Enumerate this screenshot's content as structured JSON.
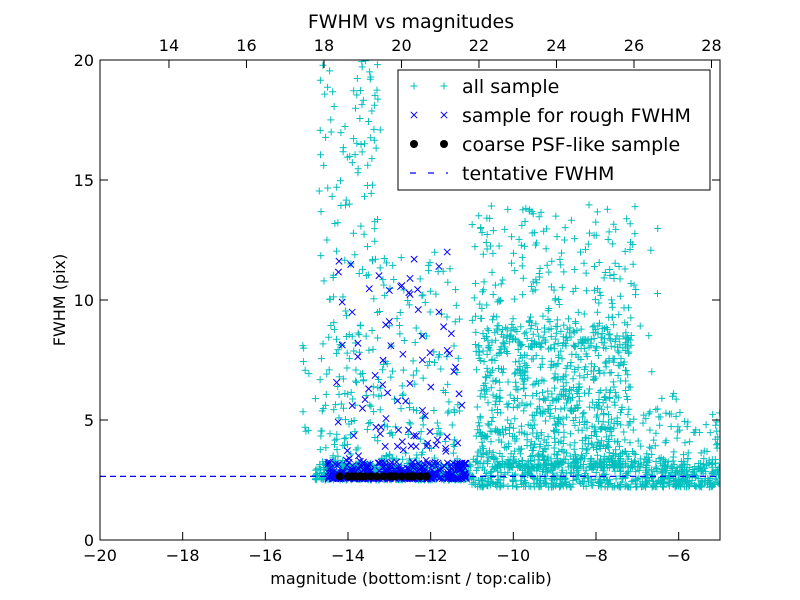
{
  "chart_data": {
    "type": "scatter",
    "title": "FWHM vs magnitudes",
    "xlabel": "magnitude (bottom:isnt / top:calib)",
    "ylabel": "FWHM (pix)",
    "xlim": [
      -20,
      -5
    ],
    "ylim": [
      0,
      20
    ],
    "top_xlim": [
      12.22,
      28.22
    ],
    "x_ticks": [
      -20,
      -18,
      -16,
      -14,
      -12,
      -10,
      -8,
      -6
    ],
    "x_tick_labels": [
      "−20",
      "−18",
      "−16",
      "−14",
      "−12",
      "−10",
      "−8",
      "−6"
    ],
    "y_ticks": [
      0,
      5,
      10,
      15,
      20
    ],
    "y_tick_labels": [
      "0",
      "5",
      "10",
      "15",
      "20"
    ],
    "top_ticks": [
      14,
      16,
      18,
      20,
      22,
      24,
      26,
      28
    ],
    "top_tick_labels": [
      "14",
      "16",
      "18",
      "20",
      "22",
      "24",
      "26",
      "28"
    ],
    "grid": false,
    "legend_position": "top-right",
    "colors": {
      "all_sample": "#00bfbf",
      "rough_sample": "#0000ff",
      "psf_sample": "#000000",
      "tentative_line": "#0000ff"
    },
    "series": [
      {
        "name": "all sample",
        "marker": "+",
        "description_points": 2600,
        "regions": [
          {
            "x": [
              -14.8,
              -11.0
            ],
            "y": [
              2.5,
              3.2
            ],
            "n": 420
          },
          {
            "x": [
              -14.7,
              -13.2
            ],
            "y": [
              3.0,
              20.0
            ],
            "n": 230
          },
          {
            "x": [
              -13.2,
              -11.3
            ],
            "y": [
              3.0,
              12.0
            ],
            "n": 150
          },
          {
            "x": [
              -11.0,
              -5.0
            ],
            "y": [
              2.2,
              3.4
            ],
            "n": 500
          },
          {
            "x": [
              -10.9,
              -7.2
            ],
            "y": [
              3.0,
              9.0
            ],
            "n": 820
          },
          {
            "x": [
              -11.0,
              -7.0
            ],
            "y": [
              8.0,
              14.0
            ],
            "n": 260
          },
          {
            "x": [
              -7.2,
              -5.0
            ],
            "y": [
              2.2,
              5.5
            ],
            "n": 160
          },
          {
            "x": [
              -15.2,
              -14.6
            ],
            "y": [
              4.5,
              8.5
            ],
            "n": 12
          },
          {
            "x": [
              -8.5,
              -6.0
            ],
            "y": [
              5.5,
              13.0
            ],
            "n": 30
          }
        ]
      },
      {
        "name": "sample for rough FWHM",
        "marker": "x",
        "regions": [
          {
            "x": [
              -14.5,
              -11.1
            ],
            "y": [
              2.55,
              3.25
            ],
            "n": 320
          },
          {
            "x": [
              -14.3,
              -11.2
            ],
            "y": [
              3.2,
              12.0
            ],
            "n": 70
          }
        ],
        "points": [
          [
            -12.4,
            11.7
          ],
          [
            -11.6,
            12.0
          ],
          [
            -13.0,
            10.4
          ],
          [
            -12.3,
            9.6
          ],
          [
            -11.8,
            9.5
          ],
          [
            -13.0,
            9.1
          ],
          [
            -11.5,
            8.6
          ],
          [
            -12.2,
            8.5
          ],
          [
            -11.6,
            7.9
          ],
          [
            -12.2,
            7.5
          ],
          [
            -13.5,
            6.3
          ],
          [
            -13.9,
            5.6
          ],
          [
            -12.2,
            5.4
          ],
          [
            -13.2,
            4.7
          ],
          [
            -11.6,
            4.3
          ],
          [
            -13.1,
            3.9
          ],
          [
            -11.8,
            11.4
          ],
          [
            -12.5,
            10.9
          ],
          [
            -11.4,
            7.2
          ],
          [
            -12.8,
            5.8
          ]
        ]
      },
      {
        "name": "coarse PSF-like sample",
        "marker": "o",
        "points": [
          [
            -14.2,
            2.65
          ],
          [
            -14.0,
            2.65
          ],
          [
            -13.8,
            2.65
          ],
          [
            -13.6,
            2.65
          ],
          [
            -13.45,
            2.65
          ],
          [
            -13.3,
            2.65
          ],
          [
            -13.15,
            2.65
          ],
          [
            -13.0,
            2.65
          ],
          [
            -12.85,
            2.65
          ],
          [
            -12.7,
            2.65
          ],
          [
            -12.55,
            2.65
          ],
          [
            -12.4,
            2.65
          ],
          [
            -12.25,
            2.65
          ],
          [
            -12.1,
            2.65
          ],
          [
            -13.9,
            2.65
          ],
          [
            -13.7,
            2.65
          ],
          [
            -12.95,
            2.65
          ],
          [
            -12.45,
            2.65
          ]
        ]
      },
      {
        "name": "tentative FWHM",
        "marker": "dashed-line",
        "y": 2.65
      }
    ]
  }
}
